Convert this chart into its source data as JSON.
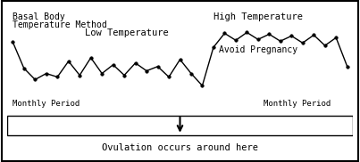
{
  "title_line1": "Basal Body",
  "title_line2": "Temperature Method",
  "label_low": "Low Temperature",
  "label_high": "High Temperature",
  "label_avoid": "Avoid Pregnancy",
  "label_monthly_left": "Monthly Period",
  "label_monthly_right": "Monthly Period",
  "label_ovulation": "Ovulation occurs around here",
  "bg_color": "#ffffff",
  "line_color": "#000000",
  "x_values": [
    0,
    1,
    2,
    3,
    4,
    5,
    6,
    7,
    8,
    9,
    10,
    11,
    12,
    13,
    14,
    15,
    16,
    17,
    18,
    19,
    20,
    21,
    22,
    23,
    24,
    25,
    26,
    27,
    28,
    29,
    30
  ],
  "y_values": [
    0.78,
    0.48,
    0.35,
    0.42,
    0.38,
    0.56,
    0.4,
    0.6,
    0.42,
    0.52,
    0.4,
    0.54,
    0.45,
    0.5,
    0.38,
    0.58,
    0.42,
    0.28,
    0.72,
    0.88,
    0.8,
    0.89,
    0.81,
    0.87,
    0.79,
    0.85,
    0.77,
    0.86,
    0.74,
    0.83,
    0.5
  ],
  "figsize": [
    4.03,
    1.82
  ],
  "dpi": 100
}
